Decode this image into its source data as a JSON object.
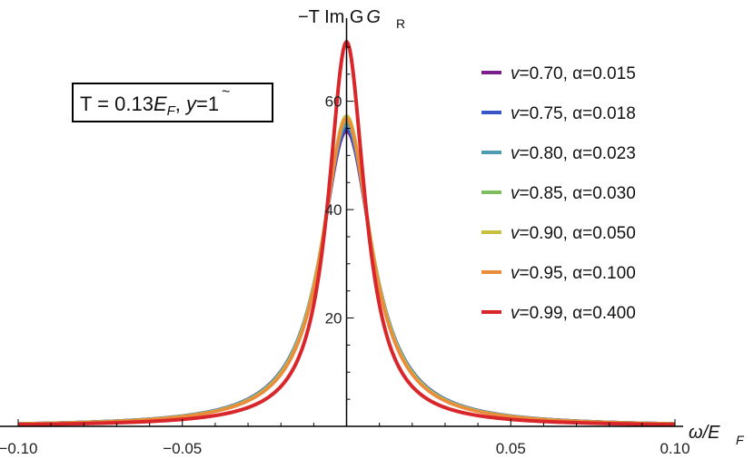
{
  "chart_data": {
    "type": "line",
    "ylabel": "−T Im G",
    "ylabel_sub": "R",
    "xlabel": "ω/E",
    "xlabel_sub": "F",
    "xlim": [
      -0.1,
      0.1
    ],
    "ylim": [
      0,
      74
    ],
    "xticks": [
      {
        "value": -0.1,
        "label": "−0.10"
      },
      {
        "value": -0.05,
        "label": "−0.05"
      },
      {
        "value": 0.05,
        "label": "0.05"
      },
      {
        "value": 0.1,
        "label": "0.10"
      }
    ],
    "yticks": [
      {
        "value": 20,
        "label": "20"
      },
      {
        "value": 40,
        "label": "40"
      },
      {
        "value": 60,
        "label": "60"
      }
    ],
    "annotation": {
      "prefix": "T = 0.13",
      "E": "E",
      "F": "F",
      "suffix": ", ",
      "y": "y",
      "tilde": "~",
      "eq": "=1"
    },
    "legend_position": "top-right",
    "series": [
      {
        "name": "v=0.70, α=0.015",
        "v": "v",
        "rest": "=0.70, α=0.015",
        "color": "#7a1f8c",
        "peak": 54.5,
        "gamma": 0.0096
      },
      {
        "name": "v=0.75, α=0.018",
        "v": "v",
        "rest": "=0.75, α=0.018",
        "color": "#3a55c8",
        "peak": 55.0,
        "gamma": 0.0095
      },
      {
        "name": "v=0.80, α=0.023",
        "v": "v",
        "rest": "=0.80, α=0.023",
        "color": "#4d9ab5",
        "peak": 55.8,
        "gamma": 0.0094
      },
      {
        "name": "v=0.85, α=0.030",
        "v": "v",
        "rest": "=0.85, α=0.030",
        "color": "#7fbe5e",
        "peak": 56.5,
        "gamma": 0.0092
      },
      {
        "name": "v=0.90, α=0.050",
        "v": "v",
        "rest": "=0.90, α=0.050",
        "color": "#c8bf3e",
        "peak": 57.3,
        "gamma": 0.0091
      },
      {
        "name": "v=0.95, α=0.100",
        "v": "v",
        "rest": "=0.95, α=0.100",
        "color": "#ea8c3c",
        "peak": 56.8,
        "gamma": 0.009
      },
      {
        "name": "v=0.99, α=0.400",
        "v": "v",
        "rest": "=0.99, α=0.400",
        "color": "#d8262b",
        "peak": 71.0,
        "gamma": 0.0068
      }
    ]
  }
}
